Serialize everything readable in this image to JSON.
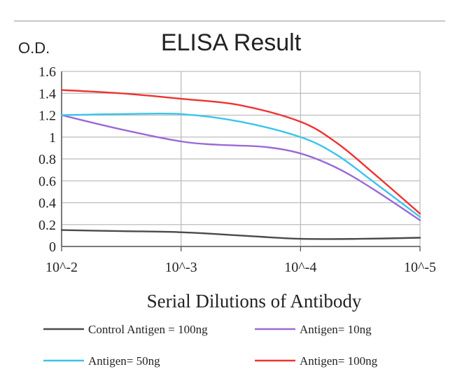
{
  "chart_data": {
    "type": "line",
    "title": "ELISA Result",
    "ylabel": "O.D.",
    "xlabel": "Serial Dilutions of Antibody",
    "categories": [
      "10^-2",
      "10^-3",
      "10^-4",
      "10^-5"
    ],
    "x": [
      -2,
      -3,
      -4,
      -5
    ],
    "ylim": [
      0,
      1.6
    ],
    "yticks": [
      "0",
      "0.2",
      "0.4",
      "0.6",
      "0.8",
      "1",
      "1.2",
      "1.4",
      "1.6"
    ],
    "grid": true,
    "legend_position": "bottom",
    "series": [
      {
        "name": "Control Antigen = 100ng",
        "color": "#4a4a4a",
        "points": [
          [
            -2,
            0.15
          ],
          [
            -2.5,
            0.14
          ],
          [
            -3,
            0.13
          ],
          [
            -3.5,
            0.1
          ],
          [
            -4,
            0.07
          ],
          [
            -4.5,
            0.07
          ],
          [
            -5,
            0.08
          ]
        ]
      },
      {
        "name": "Antigen= 10ng",
        "color": "#9a6ad6",
        "points": [
          [
            -2,
            1.2
          ],
          [
            -2.5,
            1.07
          ],
          [
            -3,
            0.96
          ],
          [
            -3.3,
            0.93
          ],
          [
            -3.7,
            0.91
          ],
          [
            -4,
            0.85
          ],
          [
            -4.3,
            0.72
          ],
          [
            -4.6,
            0.53
          ],
          [
            -5,
            0.24
          ]
        ]
      },
      {
        "name": "Antigen= 50ng",
        "color": "#3ac4ec",
        "points": [
          [
            -2,
            1.2
          ],
          [
            -2.5,
            1.21
          ],
          [
            -3,
            1.21
          ],
          [
            -3.5,
            1.14
          ],
          [
            -4,
            1.0
          ],
          [
            -4.3,
            0.84
          ],
          [
            -4.6,
            0.6
          ],
          [
            -5,
            0.27
          ]
        ]
      },
      {
        "name": "Antigen= 100ng",
        "color": "#ee3333",
        "points": [
          [
            -2,
            1.43
          ],
          [
            -2.5,
            1.4
          ],
          [
            -3,
            1.35
          ],
          [
            -3.5,
            1.29
          ],
          [
            -4,
            1.14
          ],
          [
            -4.3,
            0.95
          ],
          [
            -4.6,
            0.68
          ],
          [
            -5,
            0.3
          ]
        ]
      }
    ]
  }
}
